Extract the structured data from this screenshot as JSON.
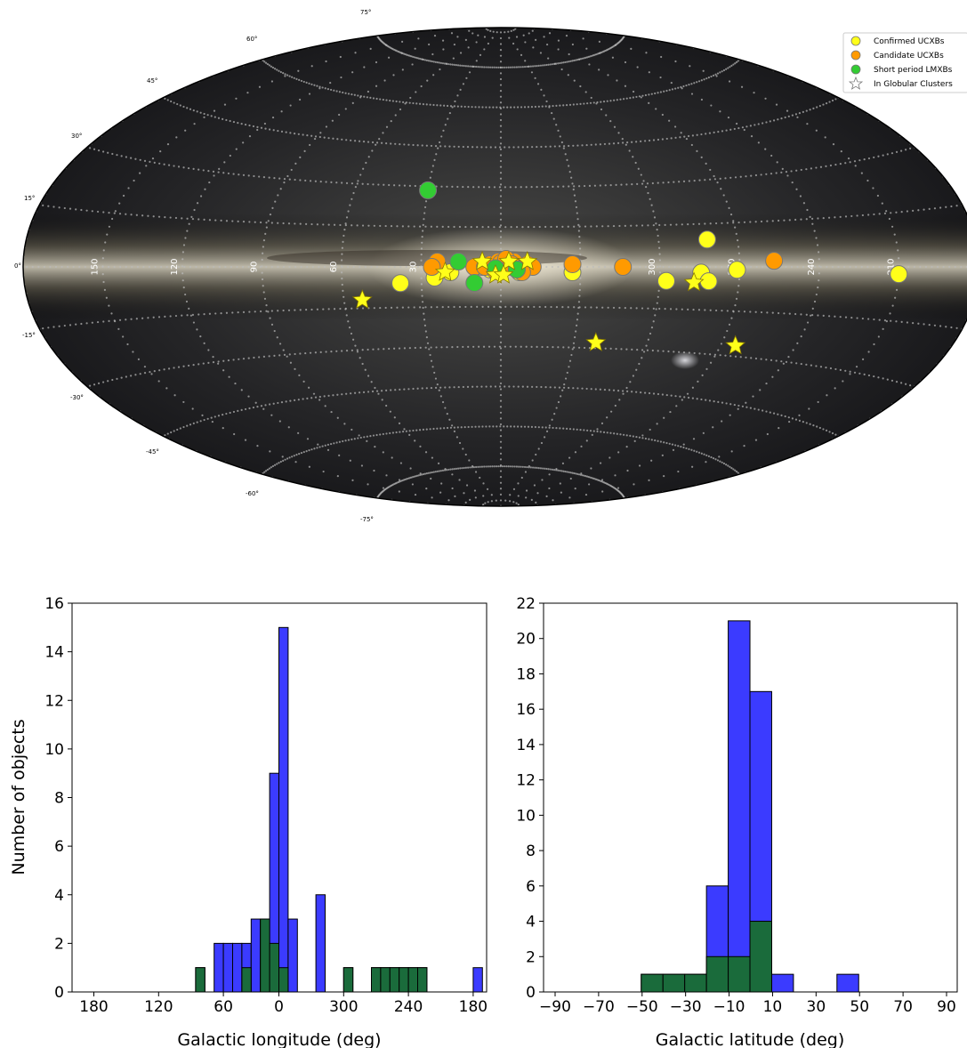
{
  "colors": {
    "confirmed": "#ffff1a",
    "candidate": "#ff9a00",
    "lmxb": "#33cc33",
    "gc_star": "#ffff1a",
    "hist_all": "#3b3bff",
    "hist_gc": "#1a6b3b"
  },
  "chart_data": [
    {
      "type": "scatter",
      "projection": "aitoff",
      "lat_grid_labels": [
        "75°",
        "60°",
        "45°",
        "30°",
        "15°",
        "0°",
        "-15°",
        "-30°",
        "-45°",
        "-60°",
        "-75°"
      ],
      "lon_grid_labels": [
        "150",
        "120",
        "90",
        "60",
        "30",
        "330",
        "300",
        "270",
        "240",
        "210"
      ],
      "grid": true,
      "legend": {
        "position": "top-right",
        "entries": [
          "Confirmed UCXBs",
          "Candidate UCXBs",
          "Short period LMXBs",
          "In Globular Clusters"
        ]
      },
      "series": [
        {
          "name": "Confirmed UCXBs",
          "marker": "circle",
          "points": [
            [
              -78.5,
              9.5
            ],
            [
              -89,
              -1
            ],
            [
              -150,
              -2
            ],
            [
              -75.5,
              -2
            ],
            [
              -78.5,
              -5
            ],
            [
              -62.5,
              -5
            ],
            [
              -27,
              -2
            ],
            [
              38,
              -6
            ],
            [
              25,
              -4
            ],
            [
              19,
              -2
            ],
            [
              -7,
              -2
            ],
            [
              -4,
              0
            ],
            [
              4,
              -1
            ],
            [
              1,
              0
            ],
            [
              -1,
              1
            ],
            [
              7,
              0
            ]
          ]
        },
        {
          "name": "Candidate UCXBs",
          "marker": "circle",
          "points": [
            [
              -103,
              2
            ],
            [
              -46,
              0
            ],
            [
              -27,
              1
            ],
            [
              24,
              2
            ],
            [
              26,
              0
            ],
            [
              10,
              0
            ],
            [
              4,
              1
            ],
            [
              1,
              2
            ],
            [
              -2,
              0
            ],
            [
              -5,
              2
            ],
            [
              -10,
              1
            ],
            [
              -12,
              0
            ],
            [
              -8,
              -2
            ],
            [
              6,
              0
            ],
            [
              0,
              1.5
            ],
            [
              -2,
              3
            ],
            [
              -4,
              1
            ],
            [
              2,
              -1.5
            ],
            [
              -6,
              -1
            ]
          ]
        },
        {
          "name": "Short period LMXBs",
          "marker": "circle",
          "points": [
            [
              30,
              28.5
            ],
            [
              16,
              2
            ],
            [
              10,
              -6
            ],
            [
              -6,
              -1
            ],
            [
              2,
              -0.5
            ]
          ]
        },
        {
          "name": "In Globular Clusters",
          "marker": "star",
          "points": [
            [
              -73,
              -5.5
            ],
            [
              -96,
              -26.5
            ],
            [
              -39,
              -28
            ],
            [
              53,
              -12
            ],
            [
              21,
              -2
            ],
            [
              7,
              2
            ],
            [
              -10,
              2
            ],
            [
              2,
              -3
            ],
            [
              -3,
              2
            ],
            [
              -1,
              -3
            ]
          ]
        }
      ]
    },
    {
      "type": "bar",
      "xlabel": "Galactic longitude (deg)",
      "ylabel": "Number of objects",
      "xticks": [
        "180",
        "120",
        "60",
        "0",
        "300",
        "240",
        "180"
      ],
      "yticks": [
        "0",
        "2",
        "4",
        "6",
        "8",
        "10",
        "12",
        "14",
        "16"
      ],
      "ylim": [
        0,
        16
      ],
      "bin_width_deg": 8,
      "series": [
        {
          "values": [
            [
              -72,
              1
            ],
            [
              -56,
              2
            ],
            [
              -48,
              2
            ],
            [
              -40,
              2
            ],
            [
              -32,
              2
            ],
            [
              -24,
              3
            ],
            [
              -16,
              3
            ],
            [
              -8,
              9
            ],
            [
              0,
              15
            ],
            [
              8,
              3
            ],
            [
              32,
              4
            ],
            [
              56,
              1
            ],
            [
              80,
              1
            ],
            [
              88,
              1
            ],
            [
              96,
              1
            ],
            [
              104,
              1
            ],
            [
              112,
              1
            ],
            [
              120,
              1
            ],
            [
              168,
              1
            ]
          ]
        },
        {
          "values": [
            [
              -72,
              1
            ],
            [
              -32,
              1
            ],
            [
              -16,
              3
            ],
            [
              -8,
              2
            ],
            [
              0,
              1
            ],
            [
              56,
              1
            ],
            [
              80,
              1
            ],
            [
              88,
              1
            ],
            [
              96,
              1
            ],
            [
              104,
              1
            ],
            [
              112,
              1
            ],
            [
              120,
              1
            ]
          ]
        }
      ]
    },
    {
      "type": "bar",
      "xlabel": "Galactic latitude (deg)",
      "ylabel": "",
      "xticks": [
        "−90",
        "−70",
        "−50",
        "−30",
        "−10",
        "10",
        "30",
        "50",
        "70",
        "90"
      ],
      "yticks": [
        "0",
        "2",
        "4",
        "6",
        "8",
        "10",
        "12",
        "14",
        "16",
        "18",
        "20",
        "22"
      ],
      "ylim": [
        0,
        22
      ],
      "bin_width_deg": 10,
      "series": [
        {
          "values": [
            [
              -50,
              1
            ],
            [
              -40,
              1
            ],
            [
              -30,
              1
            ],
            [
              -20,
              6
            ],
            [
              -10,
              21
            ],
            [
              0,
              17
            ],
            [
              10,
              1
            ],
            [
              40,
              1
            ]
          ]
        },
        {
          "values": [
            [
              -50,
              1
            ],
            [
              -40,
              1
            ],
            [
              -30,
              1
            ],
            [
              -20,
              2
            ],
            [
              -10,
              2
            ],
            [
              0,
              4
            ]
          ]
        }
      ]
    }
  ]
}
